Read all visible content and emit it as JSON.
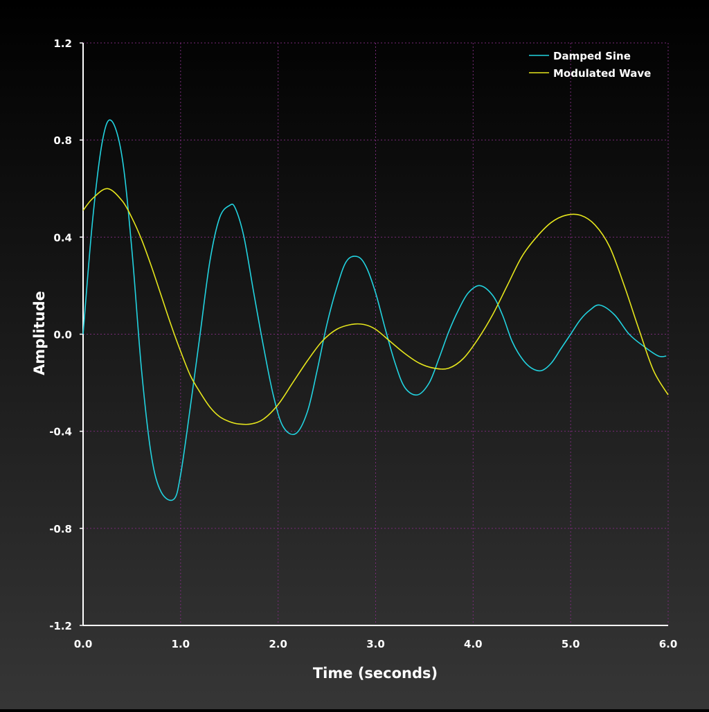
{
  "colors": {
    "bg_top": "#000000",
    "bg_bottom": "#363636",
    "grid": "#7a2a7a",
    "axis": "#ffffff",
    "text": "#ffffff"
  },
  "chart_data": {
    "type": "line",
    "title": "",
    "xlabel": "Time (seconds)",
    "ylabel": "Amplitude",
    "xlim": [
      0,
      6
    ],
    "ylim": [
      -1.2,
      1.2
    ],
    "grid": true,
    "legend_position": "top-right",
    "x_ticks": [
      0,
      1,
      2,
      3,
      4,
      5,
      6
    ],
    "x_tick_labels": [
      "0.0",
      "1.0",
      "2.0",
      "3.0",
      "4.0",
      "5.0",
      "6.0"
    ],
    "y_ticks": [
      1.2,
      0.8,
      0.4,
      0.0,
      -0.4,
      -0.8,
      -1.2
    ],
    "y_tick_labels": [
      "1.2",
      "0.8",
      "0.4",
      "0.0",
      "-0.4",
      "-0.8",
      "-1.2"
    ],
    "series": [
      {
        "name": "Damped Sine",
        "color": "#22d3e0",
        "x": [
          0,
          0.1,
          0.2,
          0.29,
          0.4,
          0.5,
          0.6,
          0.7,
          0.8,
          0.93,
          1.0,
          1.1,
          1.2,
          1.3,
          1.4,
          1.5,
          1.56,
          1.65,
          1.75,
          1.85,
          1.95,
          2.05,
          2.18,
          2.3,
          2.4,
          2.5,
          2.6,
          2.7,
          2.81,
          2.9,
          3.0,
          3.1,
          3.2,
          3.3,
          3.43,
          3.55,
          3.65,
          3.75,
          3.85,
          3.95,
          4.07,
          4.2,
          4.3,
          4.4,
          4.5,
          4.6,
          4.7,
          4.8,
          4.9,
          5.0,
          5.1,
          5.2,
          5.3,
          5.45,
          5.6,
          5.75,
          5.9,
          5.98
        ],
        "values": [
          0.0,
          0.48,
          0.8,
          0.88,
          0.73,
          0.35,
          -0.15,
          -0.5,
          -0.65,
          -0.68,
          -0.58,
          -0.3,
          0.0,
          0.3,
          0.48,
          0.53,
          0.52,
          0.4,
          0.17,
          -0.05,
          -0.25,
          -0.38,
          -0.41,
          -0.32,
          -0.15,
          0.04,
          0.19,
          0.3,
          0.32,
          0.28,
          0.17,
          0.02,
          -0.12,
          -0.22,
          -0.25,
          -0.2,
          -0.1,
          0.01,
          0.1,
          0.17,
          0.2,
          0.16,
          0.08,
          -0.03,
          -0.1,
          -0.14,
          -0.15,
          -0.12,
          -0.06,
          0.0,
          0.06,
          0.1,
          0.12,
          0.08,
          0.0,
          -0.05,
          -0.09,
          -0.09
        ]
      },
      {
        "name": "Modulated Wave",
        "color": "#e6e61c",
        "x": [
          0,
          0.1,
          0.25,
          0.4,
          0.5,
          0.6,
          0.7,
          0.8,
          0.9,
          1.0,
          1.1,
          1.2,
          1.3,
          1.4,
          1.5,
          1.6,
          1.72,
          1.85,
          2.0,
          2.15,
          2.3,
          2.45,
          2.6,
          2.75,
          2.88,
          3.0,
          3.15,
          3.3,
          3.45,
          3.6,
          3.75,
          3.9,
          4.05,
          4.2,
          4.35,
          4.5,
          4.65,
          4.8,
          4.95,
          5.1,
          5.25,
          5.4,
          5.55,
          5.7,
          5.85,
          6.0
        ],
        "values": [
          0.51,
          0.56,
          0.6,
          0.55,
          0.48,
          0.39,
          0.28,
          0.16,
          0.04,
          -0.07,
          -0.17,
          -0.24,
          -0.3,
          -0.34,
          -0.36,
          -0.37,
          -0.37,
          -0.35,
          -0.29,
          -0.2,
          -0.11,
          -0.03,
          0.02,
          0.04,
          0.04,
          0.02,
          -0.03,
          -0.08,
          -0.12,
          -0.14,
          -0.14,
          -0.1,
          -0.02,
          0.08,
          0.2,
          0.32,
          0.4,
          0.46,
          0.49,
          0.49,
          0.45,
          0.36,
          0.2,
          0.02,
          -0.15,
          -0.25
        ]
      }
    ]
  }
}
